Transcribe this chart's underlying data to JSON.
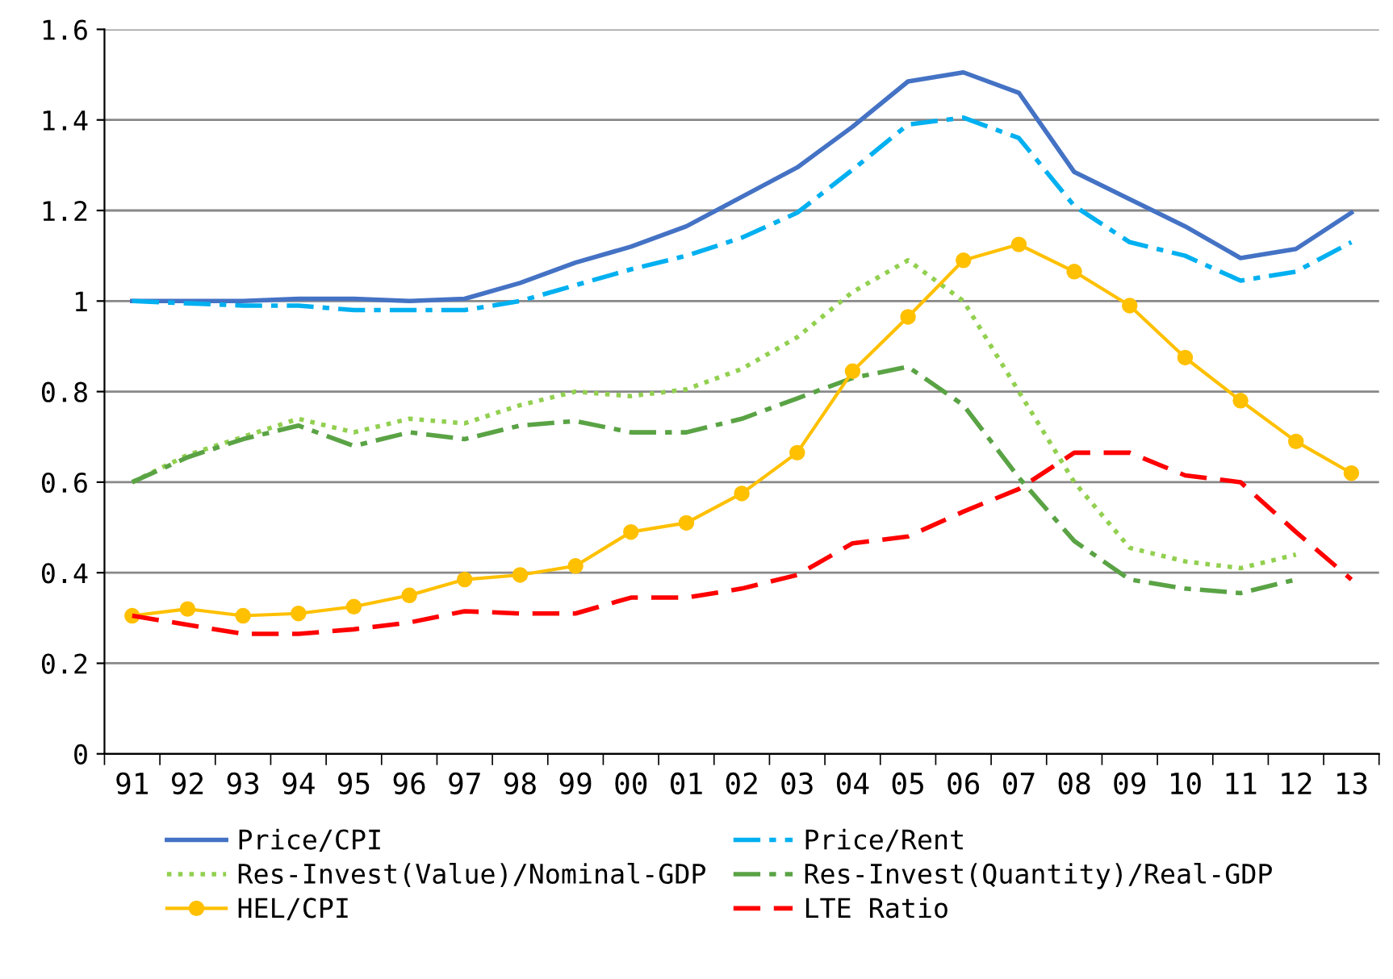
{
  "chart_data": {
    "type": "line",
    "categories": [
      "91",
      "92",
      "93",
      "94",
      "95",
      "96",
      "97",
      "98",
      "99",
      "00",
      "01",
      "02",
      "03",
      "04",
      "05",
      "06",
      "07",
      "08",
      "09",
      "10",
      "11",
      "12",
      "13"
    ],
    "ylim": [
      0,
      1.6
    ],
    "yticks": [
      0,
      0.2,
      0.4,
      0.6,
      0.8,
      1,
      1.2,
      1.4,
      1.6
    ],
    "grid": "y",
    "legend": "bottom",
    "series": [
      {
        "name": "Price/CPI",
        "color": "#4472c4",
        "line_style": "solid",
        "marker": "none",
        "values": [
          1.0,
          1.0,
          1.0,
          1.005,
          1.005,
          1.0,
          1.005,
          1.04,
          1.085,
          1.12,
          1.165,
          1.23,
          1.295,
          1.385,
          1.485,
          1.505,
          1.46,
          1.285,
          1.225,
          1.165,
          1.095,
          1.115,
          1.195
        ]
      },
      {
        "name": "Price/Rent",
        "color": "#00b0f0",
        "line_style": "dashdot",
        "marker": "none",
        "values": [
          1.0,
          0.995,
          0.99,
          0.99,
          0.98,
          0.98,
          0.98,
          1.0,
          1.035,
          1.07,
          1.1,
          1.14,
          1.195,
          1.29,
          1.39,
          1.405,
          1.36,
          1.21,
          1.13,
          1.1,
          1.045,
          1.065,
          1.13
        ]
      },
      {
        "name": "Res-Invest(Value)/Nominal-GDP",
        "color": "#92d050",
        "line_style": "dotted",
        "marker": "none",
        "values": [
          0.6,
          0.66,
          0.7,
          0.74,
          0.71,
          0.74,
          0.73,
          0.77,
          0.8,
          0.79,
          0.805,
          0.85,
          0.92,
          1.02,
          1.09,
          1.0,
          0.8,
          0.6,
          0.455,
          0.425,
          0.41,
          0.44,
          null
        ]
      },
      {
        "name": "Res-Invest(Quantity)/Real-GDP",
        "color": "#5aa345",
        "line_style": "dashdot",
        "marker": "none",
        "values": [
          0.6,
          0.655,
          0.695,
          0.725,
          0.68,
          0.71,
          0.695,
          0.725,
          0.735,
          0.71,
          0.71,
          0.74,
          0.785,
          0.83,
          0.855,
          0.77,
          0.61,
          0.47,
          0.385,
          0.365,
          0.355,
          0.385,
          null
        ]
      },
      {
        "name": "HEL/CPI",
        "color": "#ffc000",
        "line_style": "solid",
        "marker": "circle",
        "values": [
          0.305,
          0.32,
          0.305,
          0.31,
          0.325,
          0.35,
          0.385,
          0.395,
          0.415,
          0.49,
          0.51,
          0.575,
          0.665,
          0.845,
          0.965,
          1.09,
          1.125,
          1.065,
          0.99,
          0.875,
          0.78,
          0.69,
          0.62
        ]
      },
      {
        "name": "LTE Ratio",
        "color": "#ff0000",
        "line_style": "dashed",
        "marker": "none",
        "values": [
          0.305,
          0.285,
          0.265,
          0.265,
          0.275,
          0.29,
          0.315,
          0.31,
          0.31,
          0.345,
          0.345,
          0.365,
          0.395,
          0.465,
          0.48,
          0.535,
          0.585,
          0.665,
          0.665,
          0.615,
          0.6,
          0.49,
          0.385
        ]
      }
    ]
  }
}
